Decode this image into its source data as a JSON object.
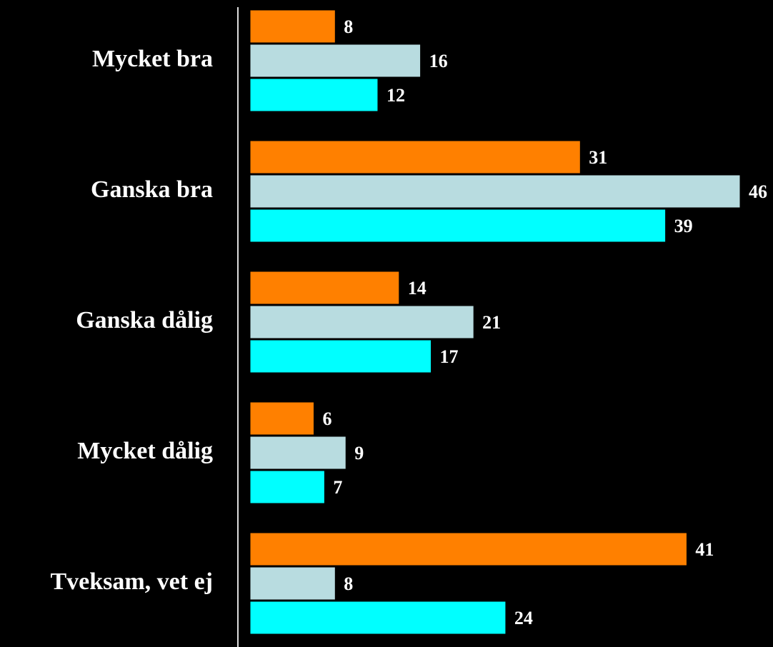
{
  "chart_data": {
    "type": "hbar",
    "categories": [
      "Mycket bra",
      "Ganska bra",
      "Ganska dålig",
      "Mycket dålig",
      "Tveksam, vet ej"
    ],
    "series": [
      {
        "color": "#ff8000",
        "values": [
          8,
          31,
          14,
          6,
          41
        ]
      },
      {
        "color": "#b8dce0",
        "values": [
          16,
          46,
          21,
          9,
          8
        ]
      },
      {
        "color": "#00ffff",
        "values": [
          12,
          39,
          17,
          7,
          24
        ]
      }
    ],
    "xlim": [
      0,
      46
    ]
  }
}
